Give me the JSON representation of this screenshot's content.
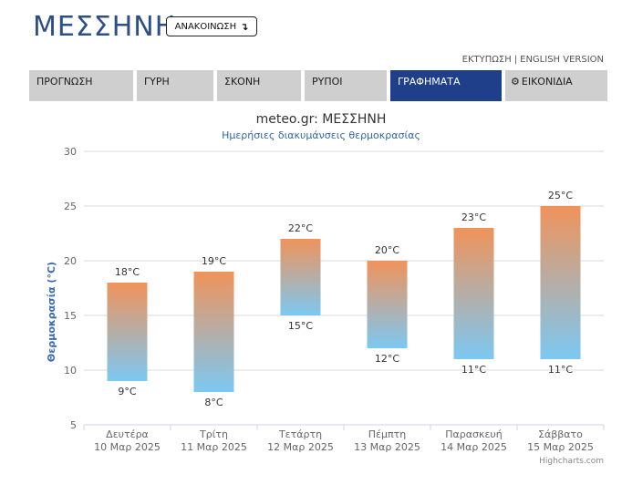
{
  "header": {
    "city": "ΜΕΣΣΗΝΗ",
    "announce_label": "ΑΝΑΚΟΙΝΩΣΗ",
    "announce_icon": "arrow-down-icon"
  },
  "toplinks": {
    "print": "ΕΚΤΥΠΩΣΗ",
    "sep": "|",
    "english": "ENGLISH VERSION"
  },
  "nav": {
    "tabs": [
      {
        "label": "ΠΡΟΓΝΩΣΗ",
        "active": false
      },
      {
        "label": "ΓΥΡΗ",
        "active": false
      },
      {
        "label": "ΣΚΟΝΗ",
        "active": false
      },
      {
        "label": "ΡΥΠΟΙ",
        "active": false
      },
      {
        "label": "ΓΡΑΦΗΜΑΤΑ",
        "active": true
      },
      {
        "label": "ΕΙΚΟΝΙΔΙΑ",
        "active": false,
        "icon": "gear-icon"
      }
    ]
  },
  "chart_data": {
    "type": "bar",
    "title": "meteo.gr: ΜΕΣΣΗΝΗ",
    "subtitle": "Ημερήσιες διακυμάνσεις θερμοκρασίας",
    "ylabel": "Θερμοκρασία (°C)",
    "ylim": [
      5,
      30
    ],
    "yticks": [
      5,
      10,
      15,
      20,
      25,
      30
    ],
    "categories": [
      {
        "day": "Δευτέρα",
        "date": "10 Μαρ 2025"
      },
      {
        "day": "Τρίτη",
        "date": "11 Μαρ 2025"
      },
      {
        "day": "Τετάρτη",
        "date": "12 Μαρ 2025"
      },
      {
        "day": "Πέμπτη",
        "date": "13 Μαρ 2025"
      },
      {
        "day": "Παρασκευή",
        "date": "14 Μαρ 2025"
      },
      {
        "day": "Σάββατο",
        "date": "15 Μαρ 2025"
      }
    ],
    "series": [
      {
        "low": 9,
        "high": 18
      },
      {
        "low": 8,
        "high": 19
      },
      {
        "low": 15,
        "high": 22
      },
      {
        "low": 12,
        "high": 20
      },
      {
        "low": 11,
        "high": 23
      },
      {
        "low": 11,
        "high": 25
      }
    ],
    "unit": "°C",
    "colors": {
      "top": "#f0935a",
      "bottom": "#7cc8f2",
      "grid": "#d8d8d8",
      "axis_text": "#666666",
      "title": "#333333",
      "subtitle": "#3366aa",
      "ylabel": "#3a6bb0"
    },
    "grid": true,
    "credit": "Highcharts.com"
  }
}
